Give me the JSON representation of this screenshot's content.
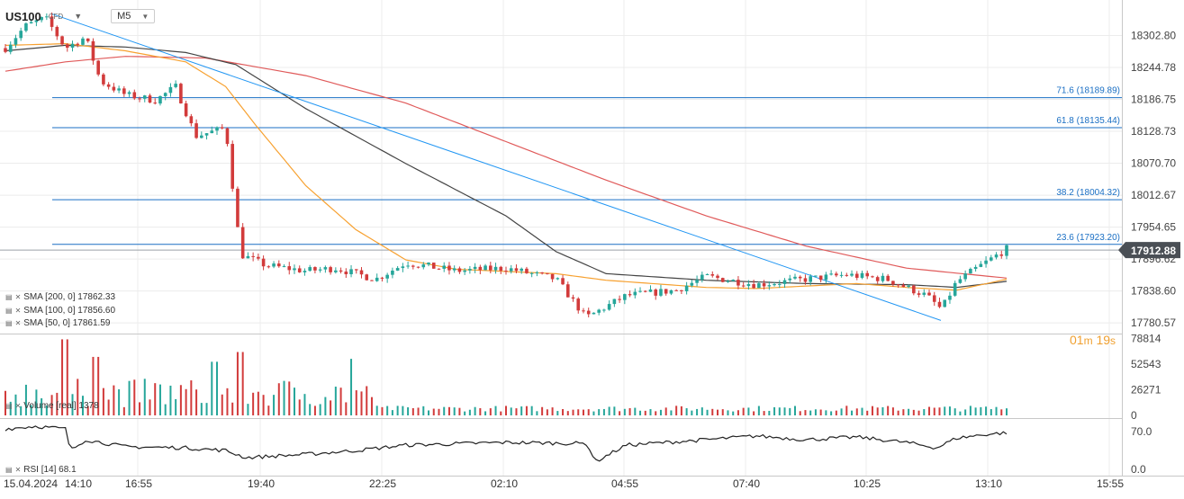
{
  "header": {
    "symbol": "US100",
    "instrument_type": "CFD",
    "timeframe": "M5"
  },
  "indicators": {
    "sma200": "SMA [200, 0] 17862.33",
    "sma100": "SMA [100, 0] 17856.60",
    "sma50": "SMA [50, 0] 17861.59",
    "volume": "Volume [real] 1378",
    "rsi": "RSI [14] 68.1"
  },
  "countdown": {
    "min": "01",
    "sec": "19"
  },
  "colors": {
    "up": "#26a69a",
    "down": "#d23b3b",
    "sma200": "#e05a5a",
    "sma100": "#444444",
    "sma50": "#f7a130",
    "fib": "#1a6fc4",
    "trend": "#2196f3",
    "price_tag": "#4a4f55"
  },
  "chart_data": {
    "type": "candlestick",
    "price_axis": {
      "ticks": [
        18302.8,
        18244.78,
        18186.75,
        18128.73,
        18070.7,
        18012.67,
        17954.65,
        17896.62,
        17838.6,
        17780.57
      ],
      "ylim": [
        17766,
        18338
      ]
    },
    "current_price": 17912.88,
    "fibonacci": [
      {
        "label": "71.6 (18189.89)",
        "level": 18189.89
      },
      {
        "label": "61.8 (18135.44)",
        "level": 18135.44
      },
      {
        "label": "38.2 (18004.32)",
        "level": 18004.32
      },
      {
        "label": "23.6 (17923.20)",
        "level": 17923.2
      }
    ],
    "x_axis": {
      "labels": [
        "15.04.2024",
        "14:10",
        "16:55",
        "19:40",
        "22:25",
        "02:10",
        "04:55",
        "07:40",
        "10:25",
        "13:10",
        "15:55"
      ]
    },
    "trendline": [
      {
        "t": 0.0,
        "p": 18342
      },
      {
        "t": 1.0,
        "p": 17785
      }
    ],
    "anchors": [
      [
        0.0,
        18280
      ],
      [
        0.02,
        18320
      ],
      [
        0.04,
        18335
      ],
      [
        0.06,
        18280
      ],
      [
        0.08,
        18300
      ],
      [
        0.095,
        18220
      ],
      [
        0.12,
        18195
      ],
      [
        0.15,
        18185
      ],
      [
        0.17,
        18210
      ],
      [
        0.19,
        18120
      ],
      [
        0.22,
        18135
      ],
      [
        0.235,
        17905
      ],
      [
        0.26,
        17885
      ],
      [
        0.3,
        17875
      ],
      [
        0.33,
        17880
      ],
      [
        0.37,
        17860
      ],
      [
        0.4,
        17890
      ],
      [
        0.45,
        17875
      ],
      [
        0.5,
        17880
      ],
      [
        0.55,
        17860
      ],
      [
        0.58,
        17790
      ],
      [
        0.62,
        17830
      ],
      [
        0.67,
        17840
      ],
      [
        0.7,
        17865
      ],
      [
        0.75,
        17850
      ],
      [
        0.8,
        17860
      ],
      [
        0.84,
        17868
      ],
      [
        0.88,
        17860
      ],
      [
        0.92,
        17830
      ],
      [
        0.935,
        17805
      ],
      [
        0.95,
        17855
      ],
      [
        0.97,
        17880
      ],
      [
        1.0,
        17915
      ]
    ],
    "sma50_points": [
      [
        0.0,
        18285
      ],
      [
        0.06,
        18288
      ],
      [
        0.12,
        18275
      ],
      [
        0.18,
        18255
      ],
      [
        0.22,
        18210
      ],
      [
        0.25,
        18140
      ],
      [
        0.3,
        18030
      ],
      [
        0.35,
        17950
      ],
      [
        0.4,
        17895
      ],
      [
        0.45,
        17878
      ],
      [
        0.55,
        17870
      ],
      [
        0.6,
        17858
      ],
      [
        0.7,
        17845
      ],
      [
        0.75,
        17843
      ],
      [
        0.85,
        17852
      ],
      [
        0.9,
        17845
      ],
      [
        0.95,
        17840
      ],
      [
        1.0,
        17860
      ]
    ],
    "sma100_points": [
      [
        0.0,
        18275
      ],
      [
        0.06,
        18285
      ],
      [
        0.12,
        18282
      ],
      [
        0.18,
        18272
      ],
      [
        0.23,
        18250
      ],
      [
        0.3,
        18170
      ],
      [
        0.4,
        18070
      ],
      [
        0.5,
        17975
      ],
      [
        0.55,
        17910
      ],
      [
        0.6,
        17870
      ],
      [
        0.7,
        17858
      ],
      [
        0.8,
        17852
      ],
      [
        0.9,
        17850
      ],
      [
        0.95,
        17845
      ],
      [
        1.0,
        17856
      ]
    ],
    "sma200_points": [
      [
        0.0,
        18238
      ],
      [
        0.06,
        18255
      ],
      [
        0.12,
        18265
      ],
      [
        0.2,
        18262
      ],
      [
        0.3,
        18230
      ],
      [
        0.4,
        18180
      ],
      [
        0.5,
        18110
      ],
      [
        0.6,
        18040
      ],
      [
        0.7,
        17975
      ],
      [
        0.8,
        17920
      ],
      [
        0.9,
        17880
      ],
      [
        1.0,
        17862
      ]
    ],
    "volume": {
      "ticks": [
        78814,
        52543,
        26271,
        0
      ],
      "ymax": 83000,
      "spikes": [
        [
          0.06,
          78000
        ],
        [
          0.09,
          60000
        ],
        [
          0.21,
          55000
        ],
        [
          0.235,
          65000
        ],
        [
          0.345,
          58000
        ],
        [
          0.36,
          30000
        ]
      ]
    },
    "rsi": {
      "ticks": [
        70.0,
        0.0
      ],
      "ylim": [
        -8,
        90
      ],
      "points": [
        [
          0.0,
          75
        ],
        [
          0.03,
          80
        ],
        [
          0.06,
          75
        ],
        [
          0.065,
          35
        ],
        [
          0.08,
          55
        ],
        [
          0.12,
          42
        ],
        [
          0.18,
          40
        ],
        [
          0.22,
          35
        ],
        [
          0.24,
          22
        ],
        [
          0.3,
          28
        ],
        [
          0.35,
          35
        ],
        [
          0.4,
          45
        ],
        [
          0.5,
          50
        ],
        [
          0.58,
          48
        ],
        [
          0.59,
          15
        ],
        [
          0.62,
          45
        ],
        [
          0.7,
          55
        ],
        [
          0.75,
          62
        ],
        [
          0.8,
          55
        ],
        [
          0.85,
          60
        ],
        [
          0.9,
          50
        ],
        [
          0.93,
          40
        ],
        [
          0.95,
          58
        ],
        [
          0.98,
          65
        ],
        [
          1.0,
          68
        ]
      ]
    }
  }
}
